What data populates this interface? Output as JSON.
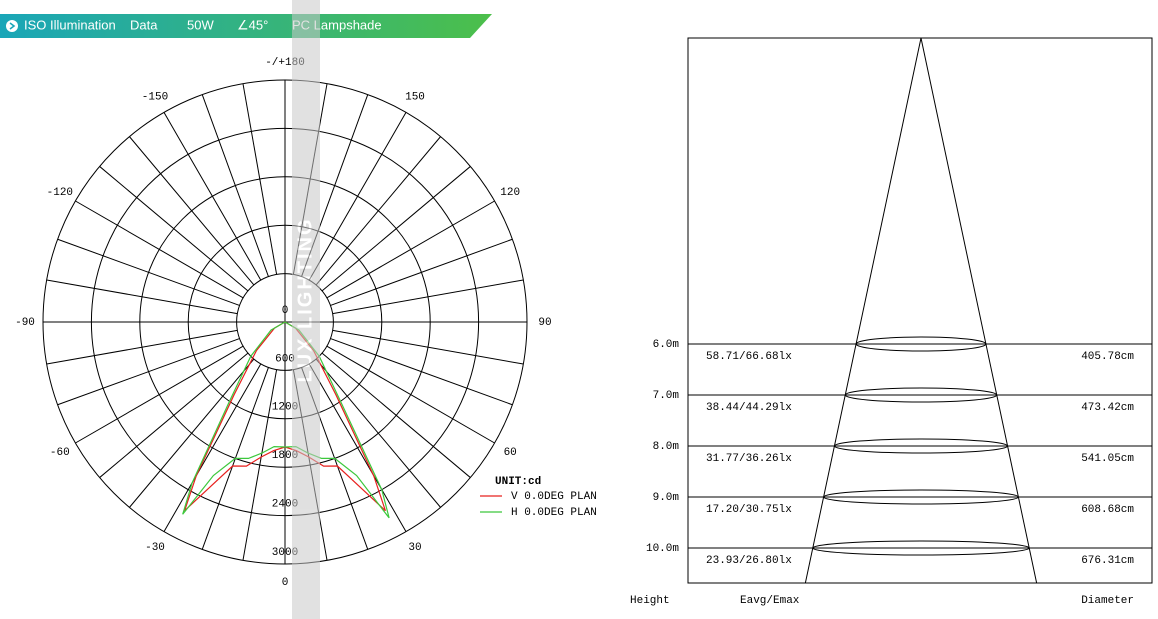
{
  "header": {
    "title": "ISO Illumination",
    "subtitle": "Data",
    "power": "50W",
    "angle": "∠45°",
    "material": "PC Lampshade"
  },
  "watermark": "LUX LIGHTING",
  "polar": {
    "angle_ticks": [
      0,
      30,
      60,
      90,
      120,
      150,
      {
        "value": 180,
        "label": "-/+180"
      },
      -150,
      -120,
      -90,
      -60,
      -30
    ],
    "radial_ticks": [
      0,
      600,
      1200,
      1800,
      2400,
      3000
    ],
    "unit": "UNIT:cd",
    "angles": [
      -90,
      -60,
      -45,
      -35,
      -30,
      -28,
      -25,
      -20,
      -15,
      -10,
      -5,
      0,
      5,
      10,
      15,
      20,
      25,
      28,
      30,
      35,
      45,
      60,
      90
    ],
    "series": [
      {
        "name": "V 0.0DEG PLAN",
        "color": "#e8201e",
        "values": [
          0,
          150,
          500,
          1100,
          2200,
          2650,
          2300,
          1900,
          1850,
          1700,
          1600,
          1550,
          1600,
          1700,
          1850,
          1900,
          2300,
          2650,
          2200,
          1100,
          500,
          150,
          0
        ]
      },
      {
        "name": "H 0.0DEG PLAN",
        "color": "#3cc83c",
        "values": [
          0,
          200,
          600,
          1200,
          2300,
          2700,
          2100,
          1800,
          1750,
          1650,
          1550,
          1550,
          1550,
          1650,
          1750,
          1800,
          2100,
          2750,
          2400,
          1200,
          600,
          200,
          0
        ]
      }
    ]
  },
  "cone": {
    "rows": [
      {
        "height": {
          "value": 6,
          "label": "6.0m"
        },
        "illuminance": "58.71/66.68lx",
        "diameter": {
          "value": 405.78,
          "label": "405.78cm"
        }
      },
      {
        "height": {
          "value": 7,
          "label": "7.0m"
        },
        "illuminance": "38.44/44.29lx",
        "diameter": {
          "value": 473.42,
          "label": "473.42cm"
        }
      },
      {
        "height": {
          "value": 8,
          "label": "8.0m"
        },
        "illuminance": "31.77/36.26lx",
        "diameter": {
          "value": 541.05,
          "label": "541.05cm"
        }
      },
      {
        "height": {
          "value": 9,
          "label": "9.0m"
        },
        "illuminance": "17.20/30.75lx",
        "diameter": {
          "value": 608.68,
          "label": "608.68cm"
        }
      },
      {
        "height": {
          "value": 10,
          "label": "10.0m"
        },
        "illuminance": "23.93/26.80lx",
        "diameter": {
          "value": 676.31,
          "label": "676.31cm"
        }
      }
    ],
    "footer": {
      "height": "Height",
      "illuminance": "Eavg/Emax",
      "diameter": "Diameter"
    }
  }
}
